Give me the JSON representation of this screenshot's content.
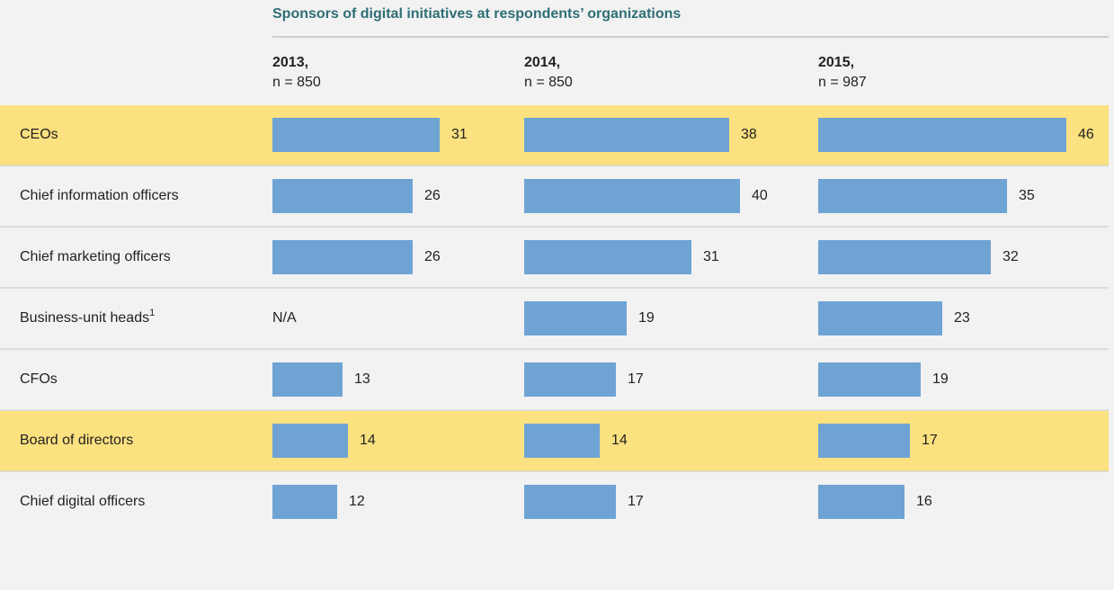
{
  "chart_data": {
    "type": "bar",
    "title": "Sponsors of digital initiatives at respondents’ organizations",
    "categories": [
      "CEOs",
      "Chief information officers",
      "Chief marketing officers",
      "Business-unit heads",
      "CFOs",
      "Board of directors",
      "Chief digital officers"
    ],
    "category_notes": [
      null,
      null,
      null,
      "1",
      null,
      null,
      null
    ],
    "highlight": [
      true,
      false,
      false,
      false,
      false,
      true,
      false
    ],
    "series": [
      {
        "name": "2013,",
        "n_label": "n = 850",
        "color": "#6fa3d4",
        "values": [
          31,
          26,
          26,
          null,
          13,
          14,
          12
        ],
        "value_labels": [
          null,
          null,
          null,
          "N/A",
          null,
          null,
          null
        ]
      },
      {
        "name": "2014,",
        "n_label": "n = 850",
        "color": "#6fa3d4",
        "values": [
          38,
          40,
          31,
          19,
          17,
          14,
          17
        ]
      },
      {
        "name": "2015,",
        "n_label": "n = 987",
        "color": "#6fa3d4",
        "values": [
          46,
          35,
          32,
          23,
          19,
          17,
          16
        ]
      }
    ]
  }
}
